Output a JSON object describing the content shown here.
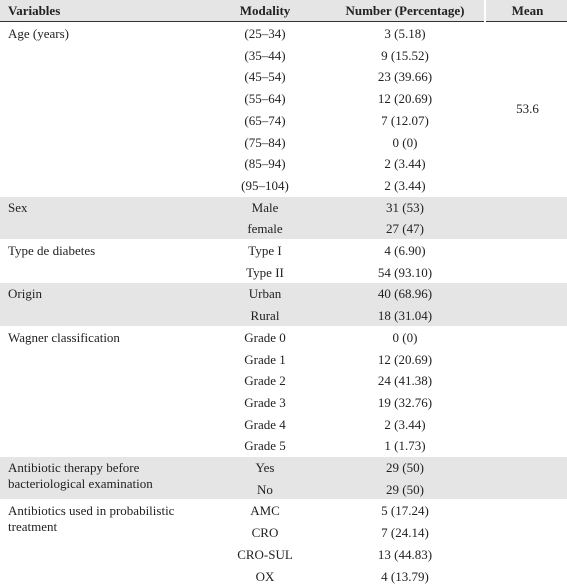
{
  "table": {
    "header": [
      "Variables",
      "Modality",
      "Number (Percentage)",
      "Mean"
    ],
    "groups": [
      {
        "variable": "Age (years)",
        "mean": 53.6,
        "rows": [
          [
            "(25–34)",
            "3 (5.18)"
          ],
          [
            "(35–44)",
            "9 (15.52)"
          ],
          [
            "(45–54)",
            "23 (39.66)"
          ],
          [
            "(55–64)",
            "12 (20.69)"
          ],
          [
            "(65–74)",
            "7 (12.07)"
          ],
          [
            "(75–84)",
            "0 (0)"
          ],
          [
            "(85–94)",
            "2 (3.44)"
          ],
          [
            "(95–104)",
            "2 (3.44)"
          ]
        ]
      },
      {
        "variable": "Sex",
        "rows": [
          [
            "Male",
            "31 (53)"
          ],
          [
            "female",
            "27 (47)"
          ]
        ]
      },
      {
        "variable": "Type de diabetes",
        "rows": [
          [
            "Type I",
            "4 (6.90)"
          ],
          [
            "Type II",
            "54 (93.10)"
          ]
        ]
      },
      {
        "variable": "Origin",
        "rows": [
          [
            "Urban",
            "40 (68.96)"
          ],
          [
            "Rural",
            "18 (31.04)"
          ]
        ]
      },
      {
        "variable": "Wagner classification",
        "rows": [
          [
            "Grade 0",
            "0 (0)"
          ],
          [
            "Grade 1",
            "12 (20.69)"
          ],
          [
            "Grade 2",
            "24 (41.38)"
          ],
          [
            "Grade 3",
            "19 (32.76)"
          ],
          [
            "Grade 4",
            "2 (3.44)"
          ],
          [
            "Grade 5",
            "1 (1.73)"
          ]
        ]
      },
      {
        "variable": "Antibiotic therapy before bacteriological examination",
        "rows": [
          [
            "Yes",
            "29 (50)"
          ],
          [
            "No",
            "29 (50)"
          ]
        ]
      },
      {
        "variable": "Antibiotics used in probabilistic treatment",
        "rows": [
          [
            "AMC",
            "5 (17.24)"
          ],
          [
            "CRO",
            "7 (24.14)"
          ],
          [
            "CRO-SUL",
            "13 (44.83)"
          ],
          [
            "OX",
            "4 (13.79)"
          ]
        ]
      }
    ]
  }
}
